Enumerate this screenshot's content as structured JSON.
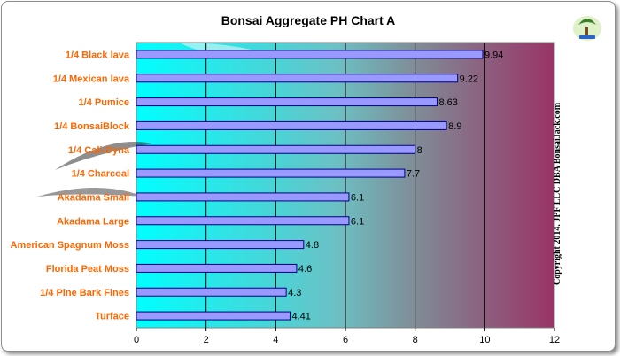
{
  "chart_data": {
    "type": "bar",
    "orientation": "horizontal",
    "title": "Bonsai Aggregate PH Chart A",
    "xlabel": "",
    "ylabel": "",
    "xlim": [
      0,
      12
    ],
    "x_ticks": [
      0,
      2,
      4,
      6,
      8,
      10,
      12
    ],
    "grid": "vertical",
    "legend": "none",
    "categories": [
      "1/4 Black lava",
      "1/4 Mexican lava",
      "1/4 Pumice",
      "1/4 BonsaiBlock",
      "1/4 Cali-Dyna",
      "1/4 Charcoal",
      "Akadama Small",
      "Akadama Large",
      "American Spagnum Moss",
      "Florida Peat Moss",
      "1/4 Pine Bark Fines",
      "Turface"
    ],
    "values": [
      9.94,
      9.22,
      8.63,
      8.9,
      8,
      7.7,
      6.1,
      6.1,
      4.8,
      4.6,
      4.3,
      4.41
    ],
    "value_labels": [
      "9.94",
      "9.22",
      "8.63",
      "8.9",
      "8",
      "7.7",
      "6.1",
      "6.1",
      "4.8",
      "4.6",
      "4.3",
      "4.41"
    ],
    "colors": {
      "bar_fill": "#9999ff",
      "bar_stroke": "#000080",
      "category_label": "#ff6600",
      "plot_gradient_start": "#00ffff",
      "plot_gradient_mid": "#7f9ca0",
      "plot_gradient_end": "#993366"
    }
  },
  "watermark": {
    "copyright": "Copyright 2014. JPF LLC DBA BonsaiJack.com",
    "logo_icon": "bonsai-tree-logo-icon"
  }
}
